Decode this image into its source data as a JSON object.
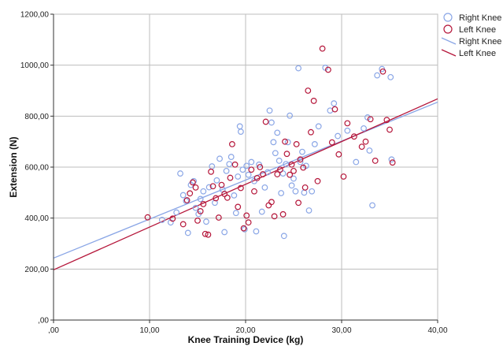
{
  "chart_data": {
    "type": "scatter",
    "xlabel": "Knee Training Device (kg)",
    "ylabel": "Extension (N)",
    "xlim": [
      0,
      40
    ],
    "ylim": [
      0,
      1200
    ],
    "x_ticks": [
      0,
      10,
      20,
      30,
      40
    ],
    "x_tick_labels": [
      ",00",
      "10,00",
      "20,00",
      "30,00",
      "40,00"
    ],
    "y_ticks": [
      0,
      200,
      400,
      600,
      800,
      1000,
      1200
    ],
    "y_tick_labels": [
      ",00",
      "200,00",
      "400,00",
      "600,00",
      "800,00",
      "1000,00",
      "1200,00"
    ],
    "grid": true,
    "legend_position": "top-right",
    "legend": [
      "Right Knee",
      "Left Knee",
      "Right Knee",
      "Left Knee"
    ],
    "series": [
      {
        "name": "Right Knee",
        "marker": "circle",
        "color": "#8aa6e6",
        "points": [
          [
            11.3,
            393
          ],
          [
            12.2,
            383
          ],
          [
            12.8,
            422
          ],
          [
            13.2,
            575
          ],
          [
            13.5,
            490
          ],
          [
            13.8,
            467
          ],
          [
            14.0,
            342
          ],
          [
            14.3,
            530
          ],
          [
            14.6,
            545
          ],
          [
            14.8,
            440
          ],
          [
            15.1,
            416
          ],
          [
            15.3,
            475
          ],
          [
            15.6,
            505
          ],
          [
            15.9,
            386
          ],
          [
            16.2,
            521
          ],
          [
            16.5,
            603
          ],
          [
            16.8,
            460
          ],
          [
            17.0,
            548
          ],
          [
            17.3,
            633
          ],
          [
            17.6,
            512
          ],
          [
            17.8,
            345
          ],
          [
            18.0,
            585
          ],
          [
            18.3,
            612
          ],
          [
            18.5,
            640
          ],
          [
            18.8,
            489
          ],
          [
            19.0,
            420
          ],
          [
            19.2,
            563
          ],
          [
            19.4,
            760
          ],
          [
            19.5,
            739
          ],
          [
            19.7,
            590
          ],
          [
            19.9,
            356
          ],
          [
            20.1,
            605
          ],
          [
            20.3,
            570
          ],
          [
            20.6,
            620
          ],
          [
            20.9,
            545
          ],
          [
            21.1,
            348
          ],
          [
            21.4,
            610
          ],
          [
            21.7,
            425
          ],
          [
            22.0,
            520
          ],
          [
            22.3,
            580
          ],
          [
            22.5,
            822
          ],
          [
            22.7,
            775
          ],
          [
            22.9,
            698
          ],
          [
            23.1,
            655
          ],
          [
            23.3,
            735
          ],
          [
            23.5,
            625
          ],
          [
            23.7,
            498
          ],
          [
            23.9,
            575
          ],
          [
            24.0,
            330
          ],
          [
            24.2,
            612
          ],
          [
            24.4,
            698
          ],
          [
            24.6,
            802
          ],
          [
            24.8,
            528
          ],
          [
            25.0,
            555
          ],
          [
            25.2,
            505
          ],
          [
            25.5,
            988
          ],
          [
            25.7,
            620
          ],
          [
            25.9,
            660
          ],
          [
            26.1,
            500
          ],
          [
            26.3,
            605
          ],
          [
            26.6,
            430
          ],
          [
            26.9,
            505
          ],
          [
            27.2,
            690
          ],
          [
            27.6,
            760
          ],
          [
            28.3,
            990
          ],
          [
            28.8,
            822
          ],
          [
            29.2,
            850
          ],
          [
            29.6,
            722
          ],
          [
            30.6,
            743
          ],
          [
            31.5,
            620
          ],
          [
            32.3,
            752
          ],
          [
            32.7,
            795
          ],
          [
            32.9,
            665
          ],
          [
            33.2,
            450
          ],
          [
            33.7,
            960
          ],
          [
            34.2,
            985
          ],
          [
            35.1,
            953
          ],
          [
            35.2,
            630
          ]
        ],
        "fit": [
          [
            0,
            243
          ],
          [
            40,
            855
          ]
        ]
      },
      {
        "name": "Left Knee",
        "marker": "circle",
        "color": "#b5163a",
        "points": [
          [
            9.8,
            403
          ],
          [
            12.4,
            398
          ],
          [
            13.5,
            376
          ],
          [
            13.9,
            470
          ],
          [
            14.2,
            497
          ],
          [
            14.5,
            540
          ],
          [
            14.8,
            520
          ],
          [
            15.0,
            390
          ],
          [
            15.3,
            427
          ],
          [
            15.6,
            455
          ],
          [
            15.8,
            338
          ],
          [
            16.1,
            335
          ],
          [
            16.4,
            582
          ],
          [
            16.6,
            525
          ],
          [
            16.9,
            478
          ],
          [
            17.2,
            402
          ],
          [
            17.5,
            530
          ],
          [
            17.8,
            495
          ],
          [
            18.1,
            480
          ],
          [
            18.4,
            558
          ],
          [
            18.6,
            690
          ],
          [
            18.9,
            610
          ],
          [
            19.2,
            444
          ],
          [
            19.5,
            518
          ],
          [
            19.8,
            360
          ],
          [
            20.1,
            410
          ],
          [
            20.3,
            383
          ],
          [
            20.6,
            590
          ],
          [
            20.9,
            505
          ],
          [
            21.2,
            557
          ],
          [
            21.5,
            600
          ],
          [
            21.8,
            572
          ],
          [
            22.1,
            778
          ],
          [
            22.4,
            450
          ],
          [
            22.7,
            463
          ],
          [
            23.0,
            407
          ],
          [
            23.3,
            572
          ],
          [
            23.6,
            590
          ],
          [
            23.9,
            415
          ],
          [
            24.1,
            700
          ],
          [
            24.3,
            652
          ],
          [
            24.6,
            570
          ],
          [
            24.8,
            610
          ],
          [
            25.0,
            585
          ],
          [
            25.3,
            690
          ],
          [
            25.5,
            460
          ],
          [
            25.7,
            630
          ],
          [
            26.0,
            598
          ],
          [
            26.2,
            520
          ],
          [
            26.5,
            900
          ],
          [
            26.8,
            737
          ],
          [
            27.1,
            860
          ],
          [
            27.5,
            545
          ],
          [
            28.0,
            1065
          ],
          [
            28.6,
            982
          ],
          [
            29.0,
            697
          ],
          [
            29.3,
            827
          ],
          [
            29.7,
            650
          ],
          [
            30.2,
            563
          ],
          [
            30.6,
            772
          ],
          [
            31.3,
            720
          ],
          [
            32.1,
            680
          ],
          [
            32.5,
            700
          ],
          [
            33.0,
            788
          ],
          [
            33.5,
            625
          ],
          [
            34.3,
            975
          ],
          [
            34.7,
            785
          ],
          [
            35.0,
            747
          ],
          [
            35.3,
            618
          ]
        ],
        "fit": [
          [
            0,
            197
          ],
          [
            40,
            868
          ]
        ]
      }
    ]
  }
}
